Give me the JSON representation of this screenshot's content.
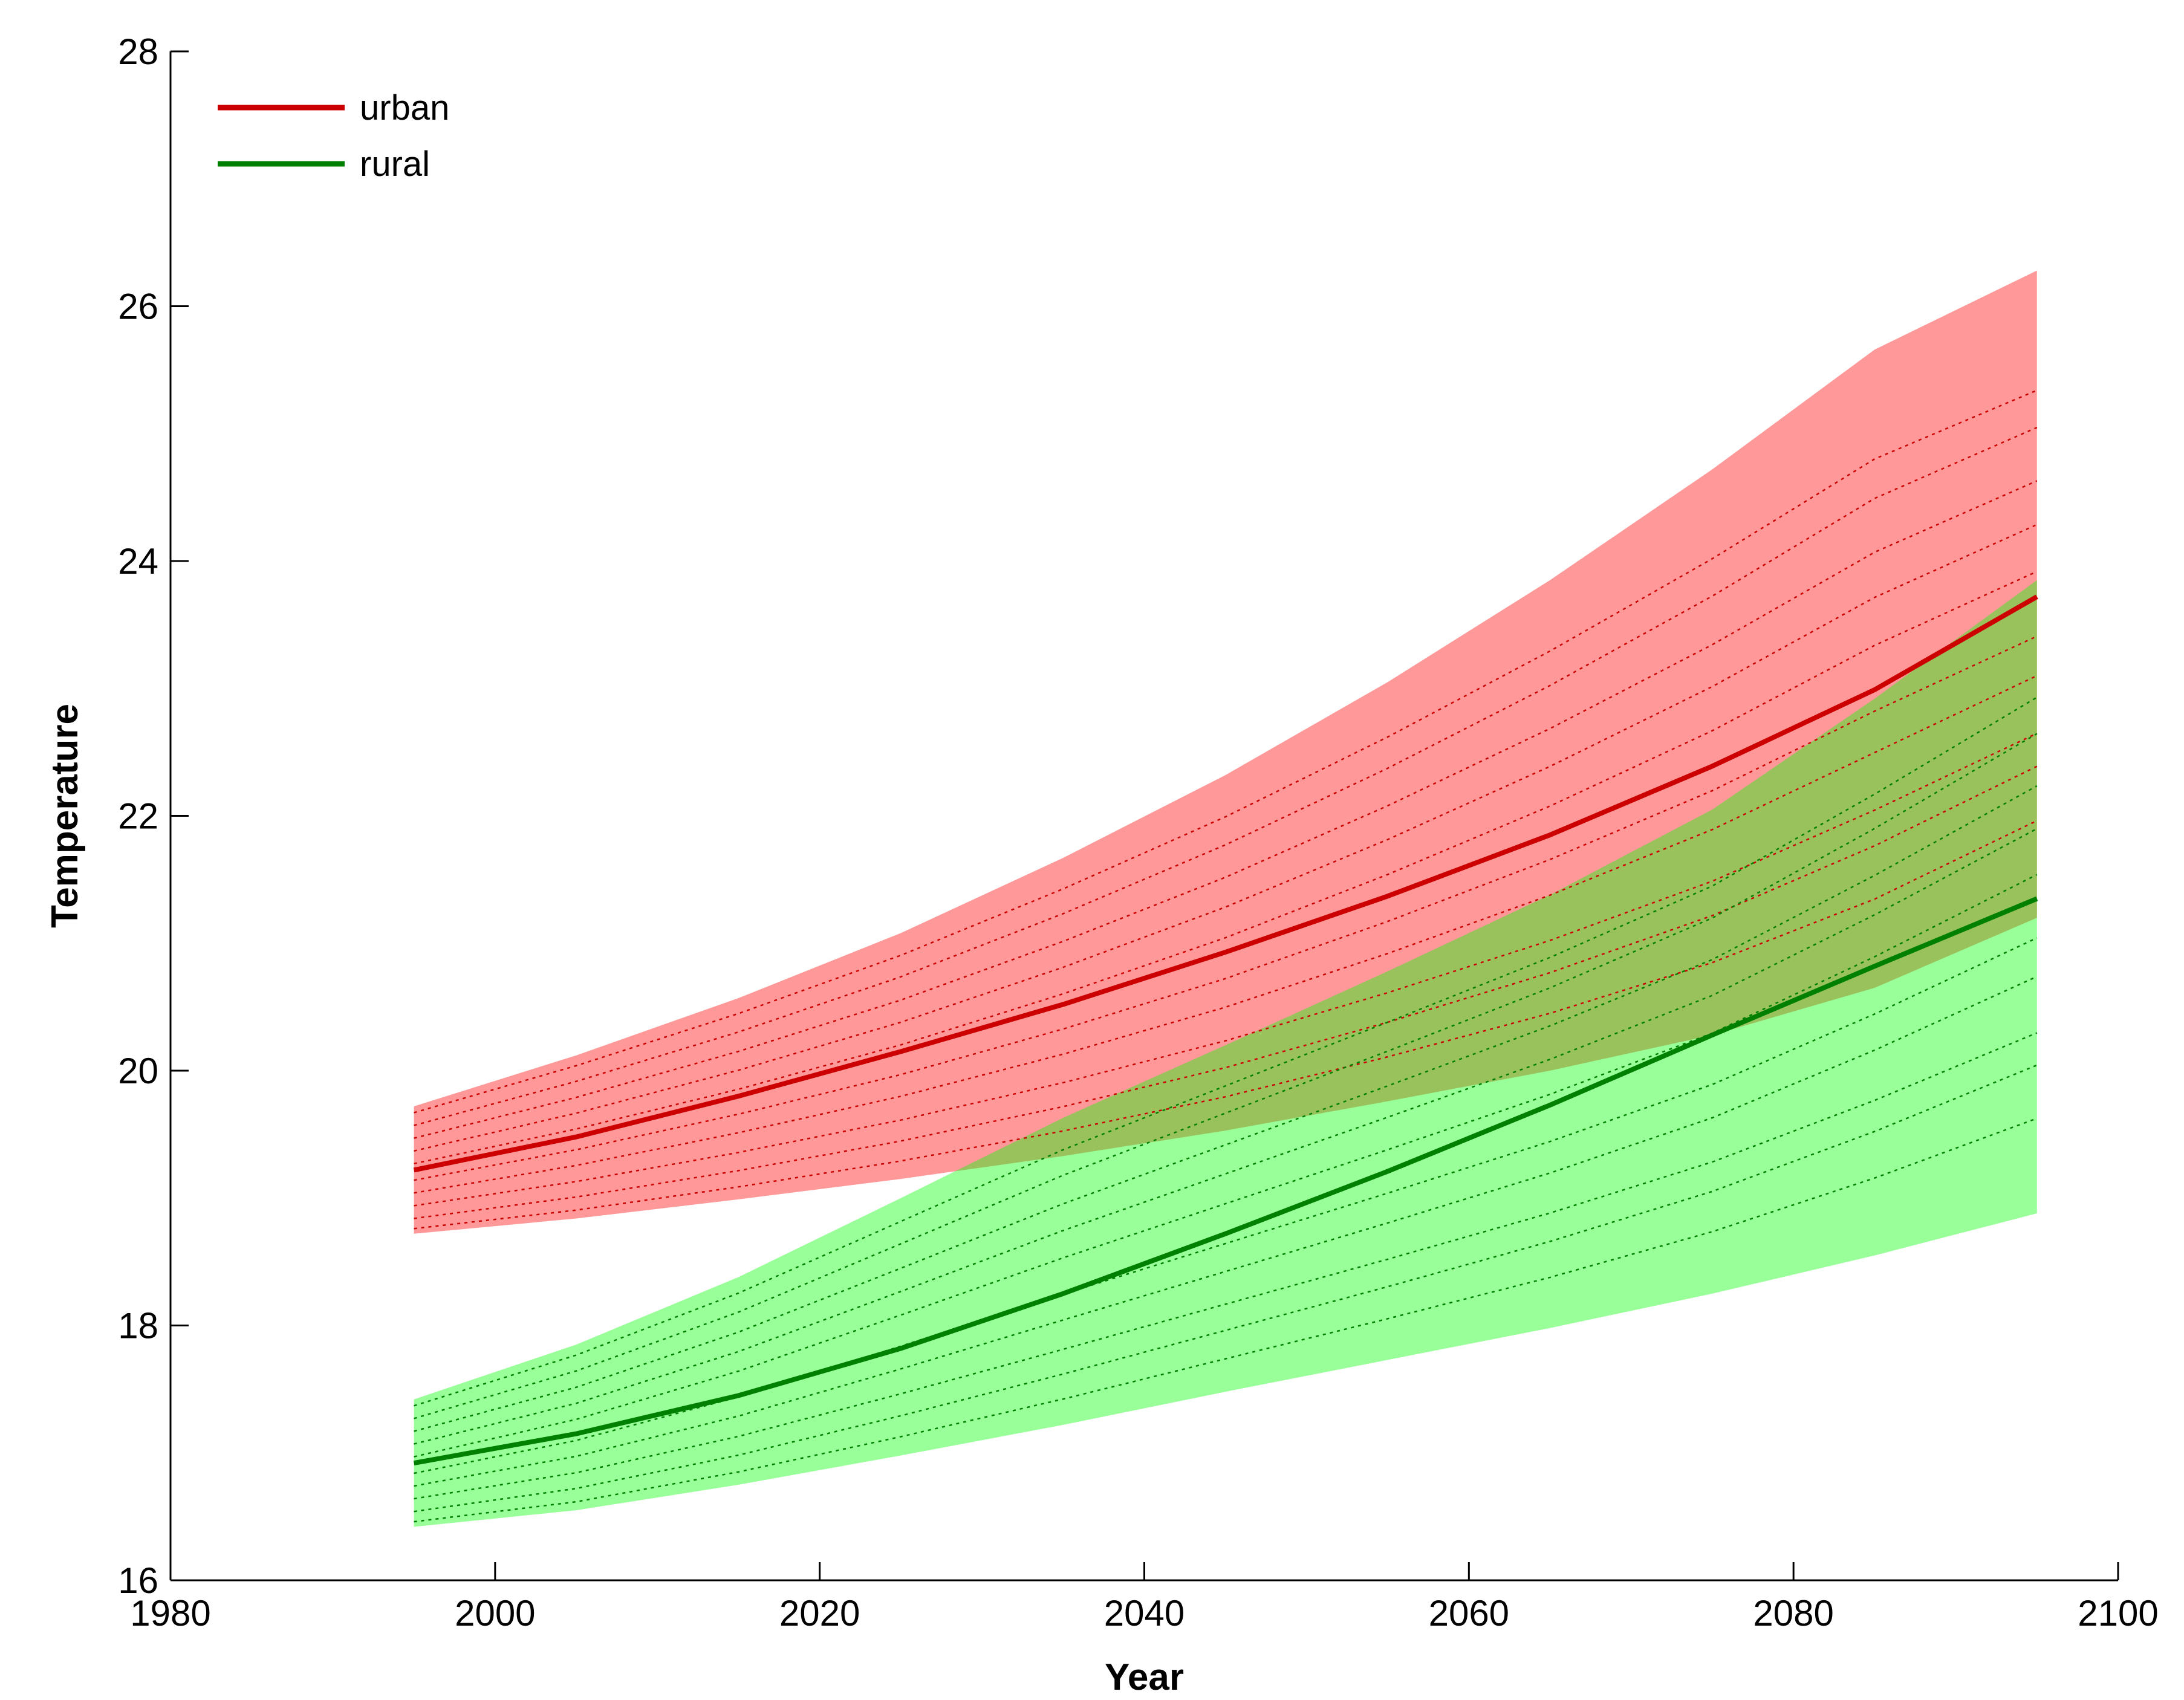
{
  "chart_data": {
    "type": "line",
    "xlabel": "Year",
    "ylabel": "Temperature",
    "xlim": [
      1980,
      2100
    ],
    "ylim": [
      16,
      28
    ],
    "xticks": [
      1980,
      2000,
      2020,
      2040,
      2060,
      2080,
      2100
    ],
    "yticks": [
      16,
      18,
      20,
      22,
      24,
      26,
      28
    ],
    "x": [
      1995,
      2005,
      2015,
      2025,
      2035,
      2045,
      2055,
      2065,
      2075,
      2085,
      2095
    ],
    "legend_position": "top-left",
    "grid": false,
    "series": [
      {
        "name": "urban",
        "color": "#cc0000",
        "values": [
          19.22,
          19.48,
          19.8,
          20.15,
          20.52,
          20.93,
          21.37,
          21.85,
          22.39,
          22.99,
          23.72
        ],
        "band_upper": [
          19.72,
          20.12,
          20.57,
          21.08,
          21.67,
          22.32,
          23.05,
          23.85,
          24.72,
          25.66,
          26.28
        ],
        "band_lower": [
          18.72,
          18.84,
          18.99,
          19.15,
          19.33,
          19.53,
          19.76,
          20.0,
          20.28,
          20.65,
          21.2
        ],
        "band_color": "#ff0000"
      },
      {
        "name": "rural",
        "color": "#008000",
        "values": [
          16.92,
          17.15,
          17.45,
          17.82,
          18.25,
          18.72,
          19.21,
          19.73,
          20.28,
          20.82,
          21.35
        ],
        "band_upper": [
          17.42,
          17.85,
          18.38,
          19.0,
          19.63,
          20.2,
          20.78,
          21.38,
          22.05,
          22.92,
          23.85
        ],
        "band_lower": [
          16.42,
          16.55,
          16.75,
          16.98,
          17.22,
          17.48,
          17.73,
          17.98,
          18.25,
          18.55,
          18.88
        ],
        "band_color": "#00ff00"
      }
    ]
  }
}
